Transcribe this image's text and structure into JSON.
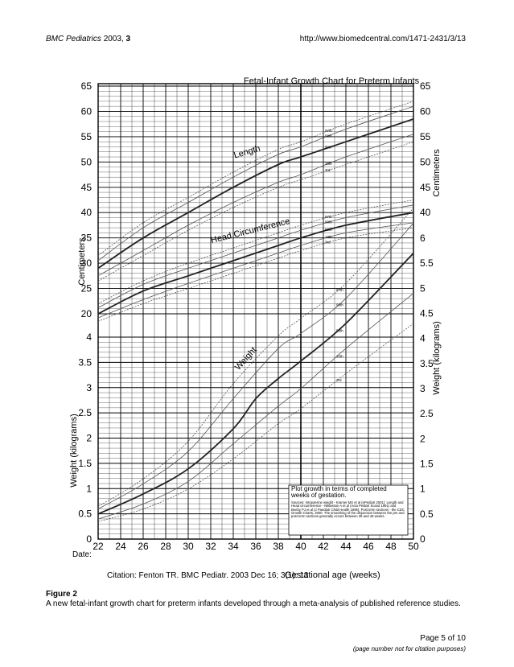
{
  "header": {
    "journal": "BMC Pediatrics",
    "year_vol": "2003,",
    "volume": "3",
    "url": "http://www.biomedcentral.com/1471-2431/3/13"
  },
  "caption": {
    "label": "Figure 2",
    "text": "A new fetal-infant growth chart for preterm infants developed through a meta-analysis of published reference studies."
  },
  "footer": {
    "page": "Page 5 of 10",
    "note": "(page number not for citation purposes)"
  },
  "chart_data": {
    "type": "line",
    "title": "Fetal-Infant Growth Chart for Preterm Infants",
    "xlabel": "Gestational age (weeks)",
    "date_label": "Date:",
    "citation": "Citation: Fenton TR.  BMC Pediatr. 2003 Dec 16; 3(1): 13",
    "ylabel_top_left": "Centimeters",
    "ylabel_top_right": "Centimeters",
    "ylabel_bottom_left": "Weight (kilograms)",
    "ylabel_bottom_right": "Weight (kilograms)",
    "xlim": [
      22,
      50
    ],
    "x_ticks": [
      22,
      24,
      26,
      28,
      30,
      32,
      34,
      36,
      38,
      40,
      42,
      44,
      46,
      48,
      50
    ],
    "ticks_left_cm": [
      "65",
      "60",
      "55",
      "50",
      "45",
      "40",
      "35",
      "30",
      "25",
      "20"
    ],
    "ticks_left_kg": [
      "4",
      "3.5",
      "3",
      "2.5",
      "2",
      "1.5",
      "1",
      "0.5",
      "0"
    ],
    "ticks_right_cm": [
      "65",
      "60",
      "55",
      "50",
      "45",
      "40"
    ],
    "ticks_right_kg": [
      "6",
      "5.5",
      "5",
      "4.5",
      "4",
      "3.5",
      "3",
      "2.5",
      "2",
      "1.5",
      "1",
      "0.5",
      "0"
    ],
    "curve_labels": [
      "Length",
      "Head Circumference",
      "Weight"
    ],
    "percentile_labels": [
      "97th",
      "90th",
      "50th",
      "10th",
      "3rd"
    ],
    "note_box": {
      "title": "Plot growth in terms of completed weeks of gestation.",
      "sources": "Sources: Intrauterine weight - Kramer MS et al (ePediatr 2001); Length and Head circumference - Niklasson A et al (Acta Pediatr Scand 1991) and Beeby PJ et al (J Paediatr Child Health 1996); Post term sections - the CDC Growth Charts, 2000. The smoothing of the disjunction between the pre and post term sections generally occurs between 36 and 46 weeks."
    },
    "grid": true,
    "series": [
      {
        "name": "Length",
        "percentiles": {
          "3": [
            [
              22,
              26.5
            ],
            [
              26,
              31.5
            ],
            [
              30,
              36.5
            ],
            [
              34,
              41
            ],
            [
              38,
              45
            ],
            [
              40,
              46.5
            ],
            [
              44,
              49.5
            ],
            [
              50,
              54
            ]
          ],
          "10": [
            [
              22,
              27.5
            ],
            [
              26,
              32.5
            ],
            [
              30,
              37.5
            ],
            [
              34,
              42
            ],
            [
              38,
              46
            ],
            [
              40,
              47.5
            ],
            [
              44,
              51
            ],
            [
              50,
              55.5
            ]
          ],
          "50": [
            [
              22,
              29
            ],
            [
              26,
              35
            ],
            [
              30,
              40
            ],
            [
              34,
              45
            ],
            [
              38,
              49.5
            ],
            [
              40,
              51
            ],
            [
              44,
              54
            ],
            [
              50,
              58.5
            ]
          ],
          "90": [
            [
              22,
              30.5
            ],
            [
              26,
              37
            ],
            [
              30,
              42
            ],
            [
              34,
              47
            ],
            [
              38,
              51.5
            ],
            [
              40,
              53
            ],
            [
              44,
              56.5
            ],
            [
              50,
              61
            ]
          ],
          "97": [
            [
              22,
              31.5
            ],
            [
              26,
              38
            ],
            [
              30,
              43
            ],
            [
              34,
              48
            ],
            [
              38,
              52.5
            ],
            [
              40,
              54
            ],
            [
              44,
              57.5
            ],
            [
              50,
              62
            ]
          ]
        }
      },
      {
        "name": "Head Circumference",
        "percentiles": {
          "3": [
            [
              22,
              18.5
            ],
            [
              26,
              22
            ],
            [
              30,
              25
            ],
            [
              34,
              28
            ],
            [
              38,
              31
            ],
            [
              40,
              32.5
            ],
            [
              44,
              35
            ],
            [
              50,
              37
            ]
          ],
          "10": [
            [
              22,
              19.2
            ],
            [
              26,
              22.8
            ],
            [
              30,
              26
            ],
            [
              34,
              29
            ],
            [
              38,
              32
            ],
            [
              40,
              33.5
            ],
            [
              44,
              36
            ],
            [
              50,
              38
            ]
          ],
          "50": [
            [
              22,
              20
            ],
            [
              26,
              24.5
            ],
            [
              30,
              27.5
            ],
            [
              34,
              30.5
            ],
            [
              38,
              33.5
            ],
            [
              40,
              35
            ],
            [
              44,
              37.5
            ],
            [
              50,
              40
            ]
          ],
          "90": [
            [
              22,
              21.2
            ],
            [
              26,
              25.8
            ],
            [
              30,
              29
            ],
            [
              34,
              32
            ],
            [
              38,
              35
            ],
            [
              40,
              36.5
            ],
            [
              44,
              39
            ],
            [
              50,
              41.5
            ]
          ],
          "97": [
            [
              22,
              22
            ],
            [
              26,
              26.5
            ],
            [
              30,
              30
            ],
            [
              34,
              33
            ],
            [
              38,
              36
            ],
            [
              40,
              37.5
            ],
            [
              44,
              40
            ],
            [
              50,
              42.5
            ]
          ]
        }
      },
      {
        "name": "Weight",
        "percentiles": {
          "3": [
            [
              22,
              0.35
            ],
            [
              26,
              0.6
            ],
            [
              30,
              1
            ],
            [
              34,
              1.6
            ],
            [
              38,
              2.3
            ],
            [
              40,
              2.6
            ],
            [
              44,
              3.3
            ],
            [
              50,
              4.3
            ]
          ],
          "10": [
            [
              22,
              0.4
            ],
            [
              26,
              0.7
            ],
            [
              30,
              1.15
            ],
            [
              34,
              1.9
            ],
            [
              38,
              2.65
            ],
            [
              40,
              3
            ],
            [
              44,
              3.8
            ],
            [
              50,
              4.9
            ]
          ],
          "50": [
            [
              22,
              0.5
            ],
            [
              26,
              0.9
            ],
            [
              30,
              1.4
            ],
            [
              34,
              2.2
            ],
            [
              36,
              2.8
            ],
            [
              38,
              3.2
            ],
            [
              40,
              3.55
            ],
            [
              44,
              4.3
            ],
            [
              50,
              5.7
            ]
          ],
          "90": [
            [
              22,
              0.6
            ],
            [
              26,
              1.1
            ],
            [
              30,
              1.75
            ],
            [
              34,
              2.8
            ],
            [
              38,
              3.8
            ],
            [
              40,
              4.1
            ],
            [
              44,
              4.8
            ],
            [
              50,
              6.3
            ]
          ],
          "97": [
            [
              22,
              0.65
            ],
            [
              26,
              1.2
            ],
            [
              30,
              1.95
            ],
            [
              34,
              3.1
            ],
            [
              38,
              4.05
            ],
            [
              40,
              4.4
            ],
            [
              44,
              5.1
            ],
            [
              50,
              6.6
            ]
          ]
        }
      }
    ]
  }
}
